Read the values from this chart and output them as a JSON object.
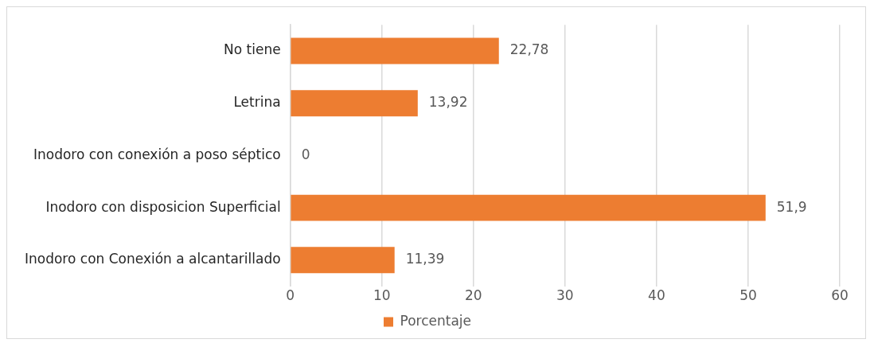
{
  "chart_data": {
    "type": "bar",
    "orientation": "horizontal",
    "categories": [
      "No tiene",
      "Letrina",
      "Inodoro con conexión a poso séptico",
      "Inodoro con disposicion Superficial",
      "Inodoro con Conexión a alcantarillado"
    ],
    "series": [
      {
        "name": "Porcentaje",
        "color": "#ed7d31",
        "values": [
          22.78,
          13.92,
          0,
          51.9,
          11.39
        ],
        "value_labels": [
          "22,78",
          "13,92",
          "0",
          "51,9",
          "11,39"
        ]
      }
    ],
    "xlim": [
      0,
      60
    ],
    "xticks": [
      0,
      10,
      20,
      30,
      40,
      50,
      60
    ],
    "grid": "x",
    "legend": "bottom"
  }
}
